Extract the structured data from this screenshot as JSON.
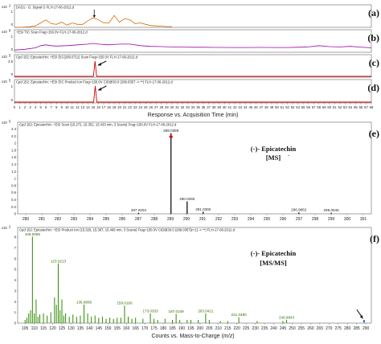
{
  "chart_data": [
    {
      "id": "a",
      "type": "line",
      "panel_letter": "(a)",
      "header": "DAD1 - G: Signal G FLH-17-06-2012.d",
      "y_multiplier": "x10",
      "y_exponent": "2",
      "y_ticks": [
        "1",
        "0"
      ],
      "x": [
        0,
        1,
        2,
        3,
        4,
        5,
        6,
        7,
        8,
        9,
        10,
        11,
        12,
        13,
        14,
        15,
        16,
        17,
        18,
        19,
        20,
        21,
        22,
        23,
        24,
        25,
        26,
        27,
        28,
        29,
        30
      ],
      "y": [
        0,
        0,
        0.02,
        0.05,
        0.1,
        0.3,
        0.5,
        0.25,
        0.2,
        0.35,
        0.15,
        0.3,
        0.2,
        0.2,
        0.45,
        0.65,
        0.5,
        0.3,
        0.3,
        0.8,
        0.35,
        0.6,
        0.5,
        0.25,
        0.3,
        0.2,
        0.12,
        0.1,
        0.08,
        0.05,
        0.05
      ],
      "ylim": [
        0,
        1.2
      ],
      "color": "#d96a00"
    },
    {
      "id": "b",
      "type": "line",
      "panel_letter": "(b)",
      "header": "+ESI TIC Scan Frag=150.0V FLH-17-06-2012.d",
      "y_multiplier": "x10",
      "y_exponent": "8",
      "y_ticks": [
        "1",
        "0"
      ],
      "x": [
        0,
        2,
        4,
        5,
        6,
        7,
        8,
        10,
        12,
        14,
        15,
        16,
        18,
        20,
        22,
        24,
        26,
        28,
        30,
        32,
        34,
        36,
        38,
        40,
        42,
        44,
        46,
        48,
        50,
        52,
        54,
        56,
        58,
        60,
        62,
        64,
        66,
        68
      ],
      "y": [
        0.15,
        0.2,
        0.3,
        0.45,
        0.5,
        0.45,
        0.42,
        0.45,
        0.5,
        0.55,
        0.6,
        0.55,
        0.5,
        0.55,
        0.55,
        0.45,
        0.4,
        0.38,
        0.36,
        0.35,
        0.34,
        0.34,
        0.33,
        0.33,
        0.32,
        0.32,
        0.33,
        0.33,
        0.32,
        0.32,
        0.34,
        0.36,
        0.45,
        0.38,
        0.36,
        0.4,
        0.35,
        0.3
      ],
      "ylim": [
        0,
        1.2
      ],
      "color": "#a000b0"
    },
    {
      "id": "c",
      "type": "line",
      "panel_letter": "(c)",
      "header": "Cpd 152: Epicatechin: +ESI EIC(289.0711) Scan Frag=150.0V FLH-17-06-2012.d",
      "y_multiplier": "x10",
      "y_exponent": "5",
      "y_ticks": [
        "2.5",
        "0"
      ],
      "peak_x": 15.35,
      "ylim": [
        0,
        3
      ],
      "color": "#d00000"
    },
    {
      "id": "d",
      "type": "line",
      "panel_letter": "(d)",
      "header": "Cpd 152: Epicatechin: +ESI EIC Product Ion Frag=150.0V CID@30.0 (289.0357 -> **) FLH-17-06-2012.d",
      "y_multiplier": "x10",
      "y_exponent": "5",
      "y_ticks": [
        "1",
        "0"
      ],
      "peak_x": 15.39,
      "ylim": [
        0,
        1.2
      ],
      "color": "#d00000",
      "xlabel": "Response vs. Acquisition Time (min)",
      "x_ticks": [
        "0",
        "1",
        "2",
        "3",
        "4",
        "5",
        "6",
        "7",
        "8",
        "9",
        "10",
        "11",
        "12",
        "13",
        "14",
        "15",
        "16",
        "17",
        "18",
        "19",
        "20",
        "21",
        "22",
        "23",
        "24",
        "25",
        "26",
        "27",
        "28",
        "29",
        "30",
        "31",
        "32",
        "33",
        "34",
        "35",
        "36",
        "37",
        "38",
        "39",
        "40",
        "41",
        "42",
        "43",
        "44",
        "45",
        "46",
        "47",
        "48",
        "49",
        "50",
        "51",
        "52",
        "53",
        "54",
        "55",
        "56",
        "57",
        "58",
        "59",
        "60",
        "61",
        "62",
        "63",
        "64",
        "65",
        "66",
        "67",
        "68"
      ]
    },
    {
      "id": "e",
      "type": "bar",
      "panel_letter": "(e)",
      "header": "Cpd 152: Epicatechin: +ESI Scan (15.272, 15.352, 15.433 min, 3 Scans) Frag=150.0V FLH-17-06-2012.d",
      "y_multiplier": "x10",
      "y_exponent": "5",
      "y_ticks": [
        "2.4",
        "2.2",
        "2",
        "1.8",
        "1.6",
        "1.4",
        "1.2",
        "1",
        "0.8",
        "0.6",
        "0.4",
        "0.2",
        "0"
      ],
      "ylim": [
        0,
        2.5
      ],
      "xlim": [
        279.5,
        301.5
      ],
      "x_ticks": [
        "280",
        "281",
        "282",
        "283",
        "284",
        "285",
        "286",
        "287",
        "288",
        "289",
        "290",
        "291",
        "292",
        "293",
        "294",
        "295",
        "296",
        "297",
        "298",
        "299",
        "300",
        "301"
      ],
      "peaks": [
        {
          "x": 287.0204,
          "y": 0.03,
          "label": "287.0204"
        },
        {
          "x": 289.0359,
          "y": 2.28,
          "label": "289.0359"
        },
        {
          "x": 290.0393,
          "y": 0.35,
          "label": "290.0393"
        },
        {
          "x": 291.0392,
          "y": 0.06,
          "label": "291.0392"
        },
        {
          "x": 296.9862,
          "y": 0.04,
          "label": "296.9862"
        },
        {
          "x": 299.0045,
          "y": 0.03,
          "label": "299.0045"
        }
      ],
      "compound": "(-)- Epicatechin",
      "mode": "[MS]",
      "mode_sup": "-",
      "color": "#111111"
    },
    {
      "id": "f",
      "type": "bar",
      "panel_letter": "(f)",
      "header": "Cpd 152: Epicatechin: +ESI Product Ion (15.329, 15.387, 15.468 min, 3 Scans) Frag=150.0V CID@30.0 (289.0357[z=1] -> **) FLH-17-06-2012.d",
      "y_multiplier": "x10",
      "y_exponent": "2",
      "y_ticks": [
        "8",
        "7",
        "6",
        "5",
        "4",
        "3",
        "2",
        "1",
        "0"
      ],
      "ylim": [
        0,
        8.6
      ],
      "xlim": [
        101,
        293
      ],
      "x_ticks": [
        "105",
        "110",
        "115",
        "120",
        "125",
        "130",
        "135",
        "140",
        "145",
        "150",
        "155",
        "160",
        "165",
        "170",
        "175",
        "180",
        "185",
        "190",
        "195",
        "200",
        "205",
        "210",
        "215",
        "220",
        "225",
        "230",
        "235",
        "240",
        "245",
        "250",
        "255",
        "260",
        "265",
        "270",
        "275",
        "280",
        "285",
        "290"
      ],
      "xlabel": "Counts vs. Mass-to-Charge (",
      "xlabel_italic": "m/z",
      "xlabel_end": ")",
      "peaks": [
        {
          "x": 109.0068,
          "y": 8.05,
          "label": "109.0068"
        },
        {
          "x": 123.0213,
          "y": 5.55,
          "label": "123.0213"
        },
        {
          "x": 136.9995,
          "y": 1.72,
          "label": "136.9995"
        },
        {
          "x": 159.019,
          "y": 1.63,
          "label": "159.0190"
        },
        {
          "x": 173.0333,
          "y": 0.9,
          "label": "173.0333"
        },
        {
          "x": 187.0109,
          "y": 0.85,
          "label": "187.0109"
        },
        {
          "x": 203.0421,
          "y": 0.9,
          "label": "203.0421"
        },
        {
          "x": 221.048,
          "y": 0.55,
          "label": "221.0480"
        },
        {
          "x": 246.9843,
          "y": 0.3,
          "label": "246.9843"
        },
        {
          "x": 289.0357,
          "y": 0.2,
          "label": ""
        }
      ],
      "minor_peaks": [
        [
          105,
          0.3
        ],
        [
          106,
          0.5
        ],
        [
          107,
          0.9
        ],
        [
          108,
          1.2
        ],
        [
          110,
          0.9
        ],
        [
          111,
          2.2
        ],
        [
          112,
          0.6
        ],
        [
          113,
          0.8
        ],
        [
          115,
          0.9
        ],
        [
          117,
          0.7
        ],
        [
          119,
          1.0
        ],
        [
          121,
          2.4
        ],
        [
          122,
          1.7
        ],
        [
          124,
          1.2
        ],
        [
          125,
          2.2
        ],
        [
          126,
          0.7
        ],
        [
          127,
          0.9
        ],
        [
          129,
          0.6
        ],
        [
          131,
          0.8
        ],
        [
          133,
          0.6
        ],
        [
          135,
          0.7
        ],
        [
          139,
          0.9
        ],
        [
          141,
          0.6
        ],
        [
          143,
          0.7
        ],
        [
          145,
          0.5
        ],
        [
          147,
          0.6
        ],
        [
          149,
          0.4
        ],
        [
          151,
          0.5
        ],
        [
          153,
          0.4
        ],
        [
          155,
          0.5
        ],
        [
          157,
          0.5
        ],
        [
          161,
          0.6
        ],
        [
          163,
          0.4
        ],
        [
          165,
          0.5
        ],
        [
          169,
          0.4
        ],
        [
          175,
          0.4
        ],
        [
          177,
          0.3
        ],
        [
          181,
          0.4
        ],
        [
          185,
          0.3
        ],
        [
          189,
          0.3
        ],
        [
          193,
          0.3
        ],
        [
          195,
          0.3
        ],
        [
          199,
          0.3
        ],
        [
          205,
          0.3
        ],
        [
          211,
          0.2
        ],
        [
          215,
          0.2
        ],
        [
          231,
          0.2
        ],
        [
          245,
          0.2
        ]
      ],
      "compound": "(-)- Epicatechin",
      "mode": "[MS/MS]",
      "color": "#2e8b00"
    }
  ]
}
